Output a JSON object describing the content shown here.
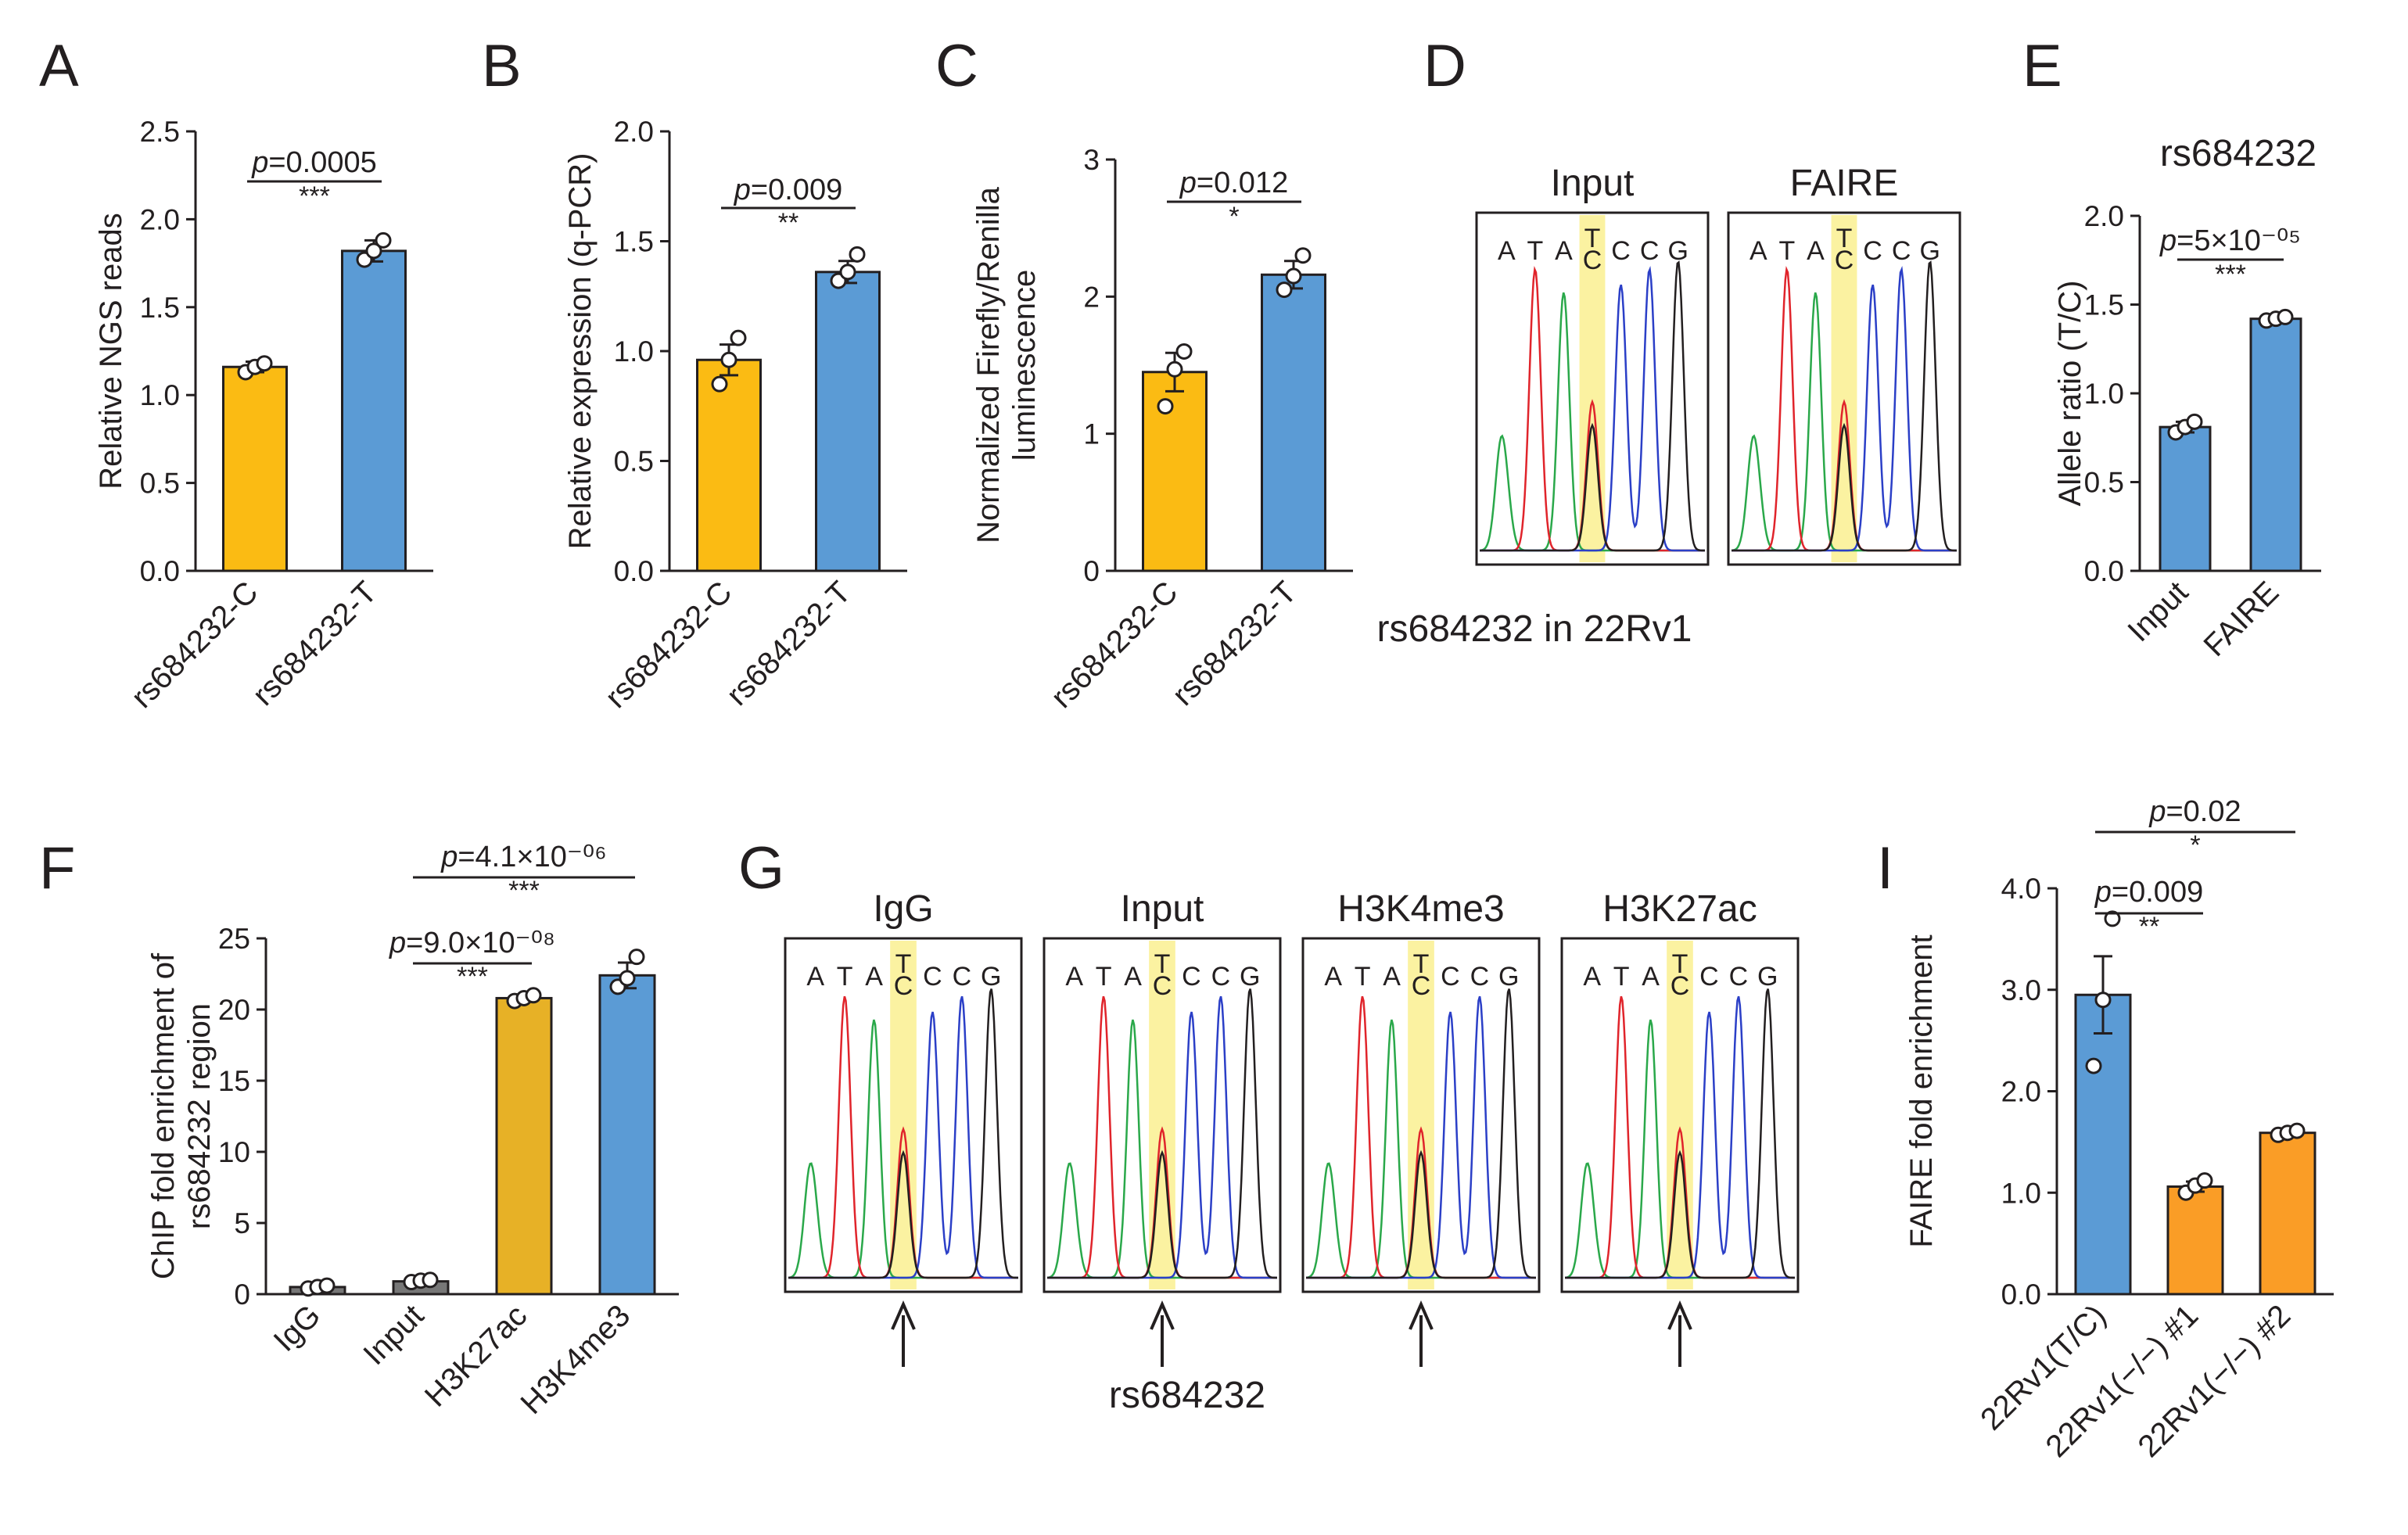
{
  "panels": {
    "A": "A",
    "B": "B",
    "C": "C",
    "D": "D",
    "E": "E",
    "F": "F",
    "G": "G",
    "I": "I"
  },
  "colors": {
    "orange": "#fbbb13",
    "blue": "#5b9bd5",
    "dark_orange": "#fa9d26",
    "gray": "#777777",
    "gold": "#e7b126",
    "highlight": "#fbf2a1",
    "trace_A": "#2aa84a",
    "trace_T": "#e0242b",
    "trace_C": "#2b3fc7",
    "trace_G": "#231f20"
  },
  "sequence": {
    "bases": [
      "A",
      "T",
      "A",
      "T/C",
      "C",
      "C",
      "G"
    ],
    "snp_top": "T",
    "snp_bottom": "C"
  },
  "chromatograms": {
    "D": {
      "labels": [
        "Input",
        "FAIRE"
      ],
      "caption": "rs684232 in 22Rv1"
    },
    "G": {
      "labels": [
        "IgG",
        "Input",
        "H3K4me3",
        "H3K27ac"
      ],
      "caption": "rs684232"
    }
  },
  "chart_data": [
    {
      "panel": "A",
      "type": "bar",
      "categories": [
        "rs684232-C",
        "rs684232-T"
      ],
      "values": [
        1.16,
        1.82
      ],
      "errors": [
        0.03,
        0.06
      ],
      "points": [
        [
          1.13,
          1.16,
          1.18
        ],
        [
          1.77,
          1.82,
          1.88
        ]
      ],
      "bar_colors": [
        "orange",
        "blue"
      ],
      "ylabel": "Relative NGS reads",
      "ylim": [
        0,
        2.5
      ],
      "yticks": [
        "0.0",
        "0.5",
        "1.0",
        "1.5",
        "2.0",
        "2.5"
      ],
      "comparisons": [
        {
          "pre": "",
          "p": "p",
          "value": "=0.0005",
          "stars": "***"
        }
      ]
    },
    {
      "panel": "B",
      "type": "bar",
      "categories": [
        "rs684232-C",
        "rs684232-T"
      ],
      "values": [
        0.96,
        1.36
      ],
      "errors": [
        0.07,
        0.05
      ],
      "points": [
        [
          0.85,
          0.96,
          1.06
        ],
        [
          1.32,
          1.36,
          1.44
        ]
      ],
      "bar_colors": [
        "orange",
        "blue"
      ],
      "ylabel": "Relative expression (q-PCR)",
      "ylim": [
        0,
        2.0
      ],
      "yticks": [
        "0.0",
        "0.5",
        "1.0",
        "1.5",
        "2.0"
      ],
      "comparisons": [
        {
          "pre": "",
          "p": "p",
          "value": "=0.009",
          "stars": "**"
        }
      ]
    },
    {
      "panel": "C",
      "type": "bar",
      "categories": [
        "rs684232-C",
        "rs684232-T"
      ],
      "values": [
        1.45,
        2.16
      ],
      "errors": [
        0.14,
        0.1
      ],
      "points": [
        [
          1.2,
          1.47,
          1.6
        ],
        [
          2.05,
          2.15,
          2.3
        ]
      ],
      "bar_colors": [
        "orange",
        "blue"
      ],
      "ylabel": [
        "Normalized Firefly/Renilla",
        "luminescence"
      ],
      "ylim": [
        0,
        3
      ],
      "yticks": [
        "0",
        "1",
        "2",
        "3"
      ],
      "comparisons": [
        {
          "pre": "",
          "p": "p",
          "value": "=0.012",
          "stars": "*"
        }
      ]
    },
    {
      "panel": "E",
      "type": "bar",
      "title": "rs684232",
      "categories": [
        "Input",
        "FAIRE"
      ],
      "values": [
        0.81,
        1.42
      ],
      "errors": [
        0.03,
        0.015
      ],
      "points": [
        [
          0.78,
          0.81,
          0.84
        ],
        [
          1.41,
          1.42,
          1.43
        ]
      ],
      "bar_colors": [
        "blue",
        "blue"
      ],
      "ylabel": "Allele ratio (T/C)",
      "ylim": [
        0,
        2.0
      ],
      "yticks": [
        "0.0",
        "0.5",
        "1.0",
        "1.5",
        "2.0"
      ],
      "comparisons": [
        {
          "pre": "",
          "p": "p",
          "value": "=5×10⁻⁰⁵",
          "stars": "***"
        }
      ]
    },
    {
      "panel": "F",
      "type": "bar",
      "categories": [
        "IgG",
        "Input",
        "H3K27ac",
        "H3K4me3"
      ],
      "values": [
        0.5,
        0.9,
        20.8,
        22.4
      ],
      "errors": [
        0.15,
        0.1,
        0.25,
        0.9
      ],
      "points": [
        [
          0.4,
          0.5,
          0.6
        ],
        [
          0.85,
          0.95,
          1.0
        ],
        [
          20.6,
          20.8,
          21.0
        ],
        [
          21.6,
          22.2,
          23.7
        ]
      ],
      "bar_colors": [
        "gray",
        "gray",
        "gold",
        "blue"
      ],
      "ylabel": [
        "ChIP fold enrichment of",
        "rs684232 region"
      ],
      "ylim": [
        0,
        25
      ],
      "yticks": [
        "0",
        "5",
        "10",
        "15",
        "20",
        "25"
      ],
      "comparisons": [
        {
          "pre": "",
          "p": "p",
          "value": "=9.0×10⁻⁰⁸",
          "stars": "***"
        },
        {
          "pre": "",
          "p": "p",
          "value": "=4.1×10⁻⁰⁶",
          "stars": "***"
        }
      ]
    },
    {
      "panel": "I",
      "type": "bar",
      "categories": [
        "22Rv1(T/C)",
        "22Rv1(−/−) #1",
        "22Rv1(−/−) #2"
      ],
      "values": [
        2.95,
        1.06,
        1.59
      ],
      "errors": [
        0.38,
        0.05,
        0.02
      ],
      "points": [
        [
          2.25,
          2.9,
          3.7
        ],
        [
          1.0,
          1.07,
          1.12
        ],
        [
          1.57,
          1.59,
          1.61
        ]
      ],
      "bar_colors": [
        "blue",
        "dark_orange",
        "dark_orange"
      ],
      "ylabel": "FAIRE fold enrichment",
      "ylim": [
        0,
        4.0
      ],
      "yticks": [
        "0.0",
        "1.0",
        "2.0",
        "3.0",
        "4.0"
      ],
      "comparisons": [
        {
          "pre": "",
          "p": "p",
          "value": "=0.009",
          "stars": "**"
        },
        {
          "pre": "",
          "p": "p",
          "value": "=0.02",
          "stars": "*"
        }
      ]
    }
  ]
}
